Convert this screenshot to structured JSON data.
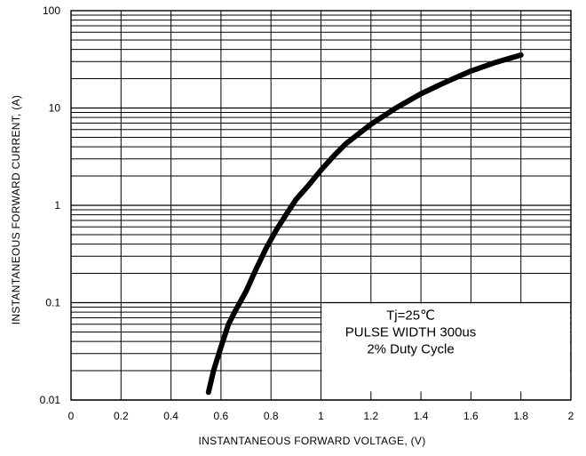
{
  "chart_data": {
    "type": "line",
    "xlabel": "INSTANTANEOUS FORWARD VOLTAGE, (V)",
    "ylabel": "INSTANTANEOUS FORWARD CURRENT, (A)",
    "xlim": [
      0,
      2
    ],
    "ylim": [
      0.01,
      100
    ],
    "y_scale": "log",
    "grid": true,
    "x_ticks": [
      "0",
      "0.2",
      "0.4",
      "0.6",
      "0.8",
      "1",
      "1.2",
      "1.4",
      "1.6",
      "1.8",
      "2"
    ],
    "x_tick_values": [
      0,
      0.2,
      0.4,
      0.6,
      0.8,
      1.0,
      1.2,
      1.4,
      1.6,
      1.8,
      2.0
    ],
    "y_ticks": [
      "0.01",
      "0.1",
      "1",
      "10",
      "100"
    ],
    "y_tick_values": [
      0.01,
      0.1,
      1,
      10,
      100
    ],
    "series": [
      {
        "x": [
          0.55,
          0.57,
          0.6,
          0.63,
          0.66,
          0.7,
          0.74,
          0.78,
          0.82,
          0.86,
          0.9,
          0.95,
          1.0,
          1.05,
          1.1,
          1.2,
          1.3,
          1.4,
          1.5,
          1.6,
          1.7,
          1.8
        ],
        "y": [
          0.012,
          0.02,
          0.035,
          0.06,
          0.085,
          0.13,
          0.22,
          0.36,
          0.55,
          0.8,
          1.15,
          1.6,
          2.3,
          3.2,
          4.3,
          6.8,
          10,
          14,
          18.5,
          24,
          29.5,
          35
        ]
      }
    ],
    "annotation": {
      "lines": [
        "Tj=25℃",
        "PULSE WIDTH 300us",
        "2% Duty Cycle"
      ],
      "x_range": [
        1.0,
        2.0
      ],
      "y_range": [
        0.012,
        0.1
      ]
    }
  }
}
